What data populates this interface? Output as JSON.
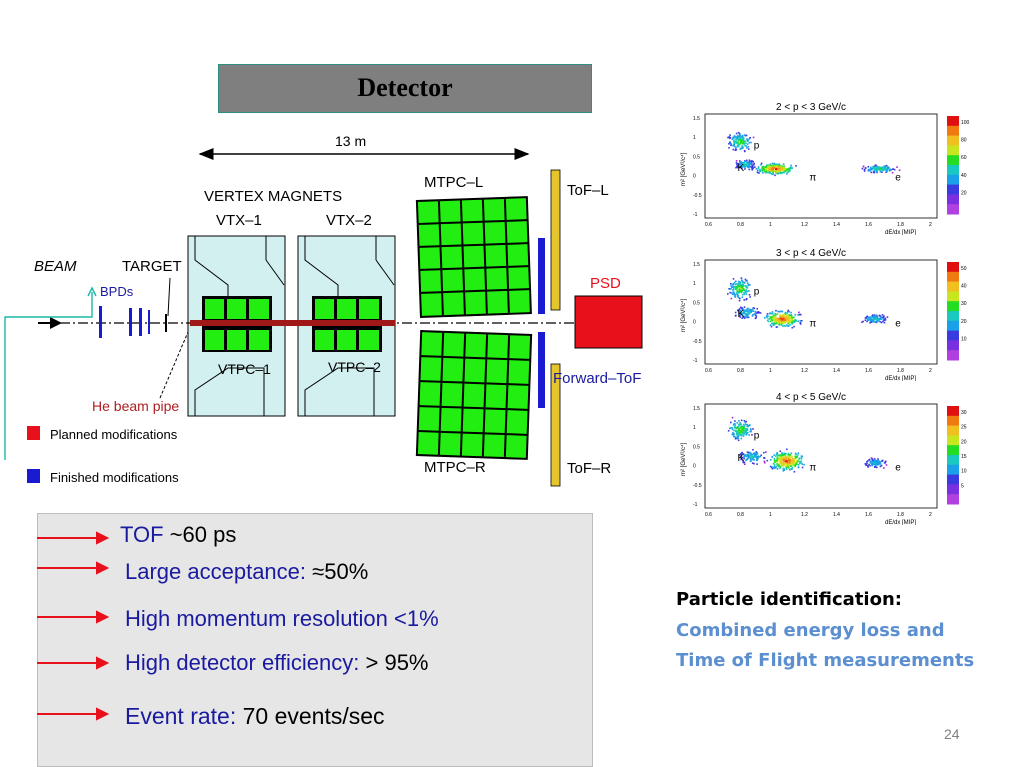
{
  "title": "Detector",
  "diagram": {
    "dimension": "13 m",
    "vertex_magnets": "VERTEX MAGNETS",
    "vtx1": "VTX–1",
    "vtx2": "VTX–2",
    "vtpc1": "VTPC–1",
    "vtpc2": "VTPC–2",
    "mtpc_l": "MTPC–L",
    "mtpc_r": "MTPC–R",
    "tof_l": "ToF–L",
    "tof_r": "ToF–R",
    "forward_tof": "Forward–ToF",
    "psd": "PSD",
    "beam": "BEAM",
    "target": "TARGET",
    "bpds": "BPDs",
    "he_beam_pipe": "He beam pipe",
    "legend_planned": "Planned modifications",
    "legend_finished": "Finished modifications",
    "colors": {
      "planned": "#e8101a",
      "finished": "#1a1ad0",
      "tpc": "#22ee11",
      "tof": "#e6c42c"
    }
  },
  "bullets": [
    {
      "label": "TOF",
      "value": " ~60 ps"
    },
    {
      "label": "Large acceptance:",
      "value": " ≈50%"
    },
    {
      "label": "High momentum resolution <1%",
      "value": ""
    },
    {
      "label": "High detector efficiency:",
      "value": " > 95%"
    },
    {
      "label": "Event rate:",
      "value": " 70 events/sec"
    }
  ],
  "pid": {
    "heading": "Particle identification:",
    "line1": "Combined energy loss and",
    "line2": "Time of Flight measurements"
  },
  "plots": [
    {
      "title": "2 < p < 3 GeV/c",
      "xlabel": "dE/dx [MIP]",
      "ylabel": "m² [GeV²/c⁴]",
      "xticks": [
        "0.6",
        "0.8",
        "1",
        "1.2",
        "1.4",
        "1.6",
        "1.8",
        "2"
      ],
      "yticks": [
        "1.5",
        "1",
        "0.5",
        "0",
        "-0.5",
        "-1"
      ],
      "scale": [
        "100",
        "80",
        "60",
        "40",
        "20"
      ],
      "particles": [
        "p",
        "K",
        "π",
        "e"
      ]
    },
    {
      "title": "3 < p < 4 GeV/c",
      "xlabel": "dE/dx [MIP]",
      "ylabel": "m² [GeV²/c⁴]",
      "xticks": [
        "0.6",
        "0.8",
        "1",
        "1.2",
        "1.4",
        "1.6",
        "1.8",
        "2"
      ],
      "yticks": [
        "1.5",
        "1",
        "0.5",
        "0",
        "-0.5",
        "-1"
      ],
      "scale": [
        "50",
        "40",
        "30",
        "20",
        "10"
      ],
      "particles": [
        "p",
        "K",
        "π",
        "e"
      ]
    },
    {
      "title": "4 < p < 5 GeV/c",
      "xlabel": "dE/dx [MIP]",
      "ylabel": "m² [GeV²/c⁴]",
      "xticks": [
        "0.6",
        "0.8",
        "1",
        "1.2",
        "1.4",
        "1.6",
        "1.8",
        "2"
      ],
      "yticks": [
        "1.5",
        "1",
        "0.5",
        "0",
        "-0.5",
        "-1"
      ],
      "scale": [
        "30",
        "25",
        "20",
        "15",
        "10",
        "5"
      ],
      "particles": [
        "p",
        "K",
        "π",
        "e"
      ]
    }
  ],
  "page_number": "24"
}
